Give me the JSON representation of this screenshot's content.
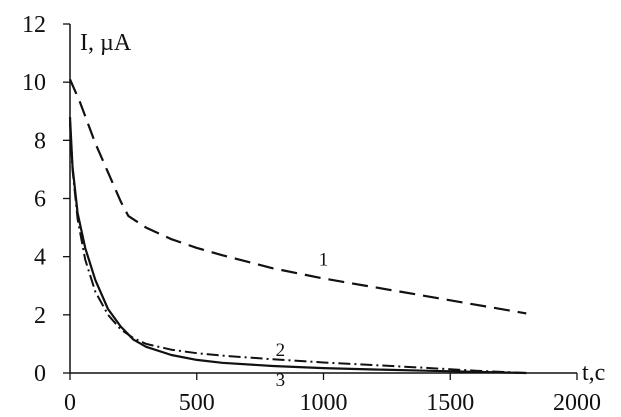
{
  "chart_data": {
    "type": "line",
    "title": "",
    "xlabel": "t,c",
    "ylabel": "I, µA",
    "xlim": [
      0,
      2000
    ],
    "ylim": [
      0,
      12
    ],
    "x_ticks": [
      0,
      500,
      1000,
      1500,
      2000
    ],
    "y_ticks": [
      0,
      2,
      4,
      6,
      8,
      10,
      12
    ],
    "grid": false,
    "legend": "none",
    "series": [
      {
        "name": "1",
        "style": "dashed",
        "color": "#111111",
        "x": [
          0,
          40,
          100,
          200,
          230,
          300,
          400,
          500,
          600,
          800,
          1000,
          1200,
          1400,
          1600,
          1800
        ],
        "y": [
          10.1,
          9.3,
          7.9,
          5.9,
          5.4,
          5.0,
          4.6,
          4.3,
          4.05,
          3.6,
          3.25,
          2.95,
          2.65,
          2.35,
          2.05
        ]
      },
      {
        "name": "2",
        "style": "dash-dot",
        "color": "#111111",
        "x": [
          0,
          10,
          30,
          60,
          100,
          150,
          200,
          250,
          300,
          400,
          500,
          600,
          800,
          1000,
          1200,
          1400,
          1600,
          1800
        ],
        "y": [
          8.6,
          7.0,
          5.3,
          3.9,
          2.8,
          2.0,
          1.5,
          1.2,
          1.0,
          0.8,
          0.68,
          0.6,
          0.47,
          0.36,
          0.27,
          0.18,
          0.08,
          0.0
        ]
      },
      {
        "name": "3",
        "style": "solid",
        "color": "#111111",
        "x": [
          0,
          10,
          30,
          60,
          100,
          150,
          200,
          250,
          300,
          400,
          500,
          600,
          800,
          1000,
          1200,
          1400,
          1600,
          1800
        ],
        "y": [
          8.8,
          7.1,
          5.5,
          4.3,
          3.2,
          2.2,
          1.6,
          1.15,
          0.9,
          0.62,
          0.45,
          0.35,
          0.24,
          0.17,
          0.12,
          0.08,
          0.04,
          0.0
        ]
      }
    ],
    "annotations": [
      {
        "text": "1",
        "x": 1000,
        "y": 3.7
      },
      {
        "text": "2",
        "x": 830,
        "y": 0.58
      },
      {
        "text": "3",
        "x": 830,
        "y": -0.45
      }
    ]
  }
}
